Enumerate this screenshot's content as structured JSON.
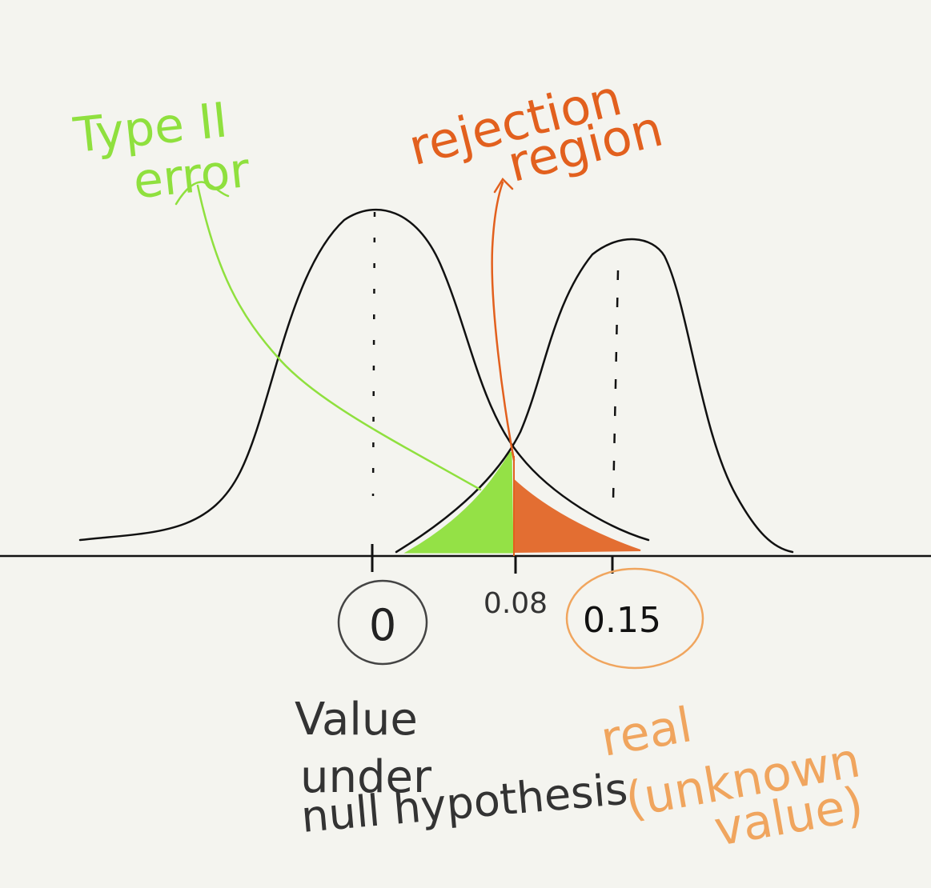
{
  "annotations": {
    "type2_line1": "Type II",
    "type2_line2": "error",
    "rejection_line1": "rejection",
    "rejection_line2": "region",
    "null_line1": "Value",
    "null_line2": "under",
    "null_line3": "null hypothesis",
    "real_line1": "real",
    "real_line2": "(unknown",
    "real_line3": "value)"
  },
  "ticks": {
    "null_value": "0",
    "critical_value": "0.08",
    "real_value": "0.15"
  },
  "colors": {
    "background": "#f4f4ef",
    "ink": "#111111",
    "type2_green": "#8fe03e",
    "rejection_orange": "#e2601e",
    "real_orange": "#f0a55e",
    "null_circle": "#444444"
  }
}
